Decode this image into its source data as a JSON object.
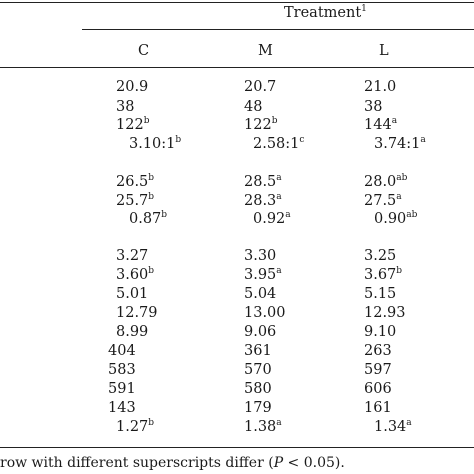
{
  "header": {
    "group_label": "Treatment",
    "group_footnote": "1",
    "columns": [
      "C",
      "M",
      "L"
    ]
  },
  "rows": [
    [
      {
        "v": "20.9",
        "s": ""
      },
      {
        "v": "20.7",
        "s": ""
      },
      {
        "v": "21.0",
        "s": ""
      }
    ],
    [
      {
        "v": "38",
        "s": ""
      },
      {
        "v": "48",
        "s": ""
      },
      {
        "v": "38",
        "s": ""
      }
    ],
    [
      {
        "v": "122",
        "s": "b"
      },
      {
        "v": "122",
        "s": "b"
      },
      {
        "v": "144",
        "s": "a"
      }
    ],
    [
      {
        "v": "3.10:1",
        "s": "b"
      },
      {
        "v": "2.58:1",
        "s": "c"
      },
      {
        "v": "3.74:1",
        "s": "a"
      }
    ],
    [
      {
        "v": "26.5",
        "s": "b"
      },
      {
        "v": "28.5",
        "s": "a"
      },
      {
        "v": "28.0",
        "s": "ab"
      }
    ],
    [
      {
        "v": "25.7",
        "s": "b"
      },
      {
        "v": "28.3",
        "s": "a"
      },
      {
        "v": "27.5",
        "s": "a"
      }
    ],
    [
      {
        "v": "0.87",
        "s": "b"
      },
      {
        "v": "0.92",
        "s": "a"
      },
      {
        "v": "0.90",
        "s": "ab"
      }
    ],
    [
      {
        "v": "3.27",
        "s": ""
      },
      {
        "v": "3.30",
        "s": ""
      },
      {
        "v": "3.25",
        "s": ""
      }
    ],
    [
      {
        "v": "3.60",
        "s": "b"
      },
      {
        "v": "3.95",
        "s": "a"
      },
      {
        "v": "3.67",
        "s": "b"
      }
    ],
    [
      {
        "v": "5.01",
        "s": ""
      },
      {
        "v": "5.04",
        "s": ""
      },
      {
        "v": "5.15",
        "s": ""
      }
    ],
    [
      {
        "v": "12.79",
        "s": ""
      },
      {
        "v": "13.00",
        "s": ""
      },
      {
        "v": "12.93",
        "s": ""
      }
    ],
    [
      {
        "v": "8.99",
        "s": ""
      },
      {
        "v": "9.06",
        "s": ""
      },
      {
        "v": "9.10",
        "s": ""
      }
    ],
    [
      {
        "v": "404",
        "s": ""
      },
      {
        "v": "361",
        "s": ""
      },
      {
        "v": "263",
        "s": ""
      }
    ],
    [
      {
        "v": "583",
        "s": ""
      },
      {
        "v": "570",
        "s": ""
      },
      {
        "v": "597",
        "s": ""
      }
    ],
    [
      {
        "v": "591",
        "s": ""
      },
      {
        "v": "580",
        "s": ""
      },
      {
        "v": "606",
        "s": ""
      }
    ],
    [
      {
        "v": "143",
        "s": ""
      },
      {
        "v": "179",
        "s": ""
      },
      {
        "v": "161",
        "s": ""
      }
    ],
    [
      {
        "v": "1.27",
        "s": "b"
      },
      {
        "v": "1.38",
        "s": "a"
      },
      {
        "v": "1.34",
        "s": "a"
      }
    ]
  ],
  "footnote": {
    "before": "row with different superscripts differ (",
    "italic": "P",
    "after": " < 0.05)."
  }
}
